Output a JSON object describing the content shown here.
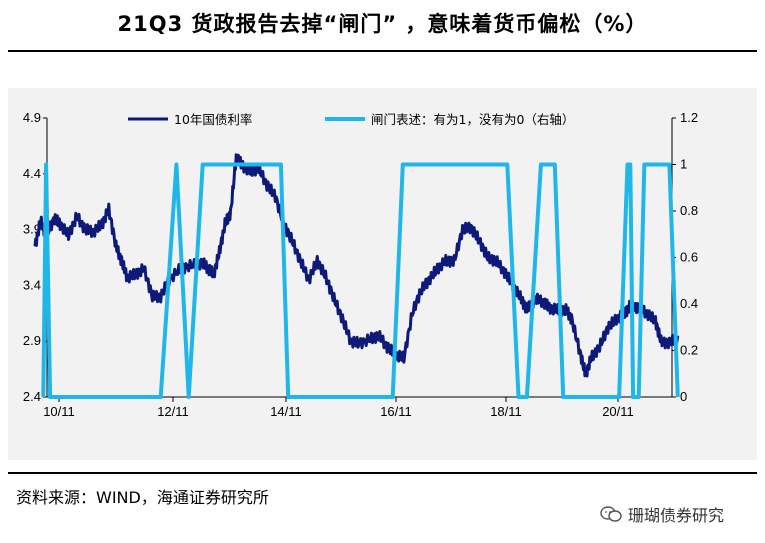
{
  "title": "21Q3 货政报告去掉“闸门” ，意味着货币偏松（%）",
  "source": "资料来源：WIND，海通证券研究所",
  "watermark": "珊瑚债券研究",
  "colors": {
    "yield_line": "#0d1a7a",
    "gate_line": "#1fb6ea",
    "background": "#f2f2f2"
  },
  "chart_data": {
    "type": "line",
    "x_ticks": [
      "10/11",
      "12/11",
      "14/11",
      "16/11",
      "18/11",
      "20/11"
    ],
    "x_range": [
      2010.4,
      2021.95
    ],
    "y_left": {
      "min": 2.4,
      "max": 4.9,
      "ticks": [
        "2.4",
        "2.9",
        "3.4",
        "3.9",
        "4.4",
        "4.9"
      ]
    },
    "y_right": {
      "min": 0,
      "max": 1.2,
      "ticks": [
        "0",
        "0.2",
        "0.4",
        "0.6",
        "0.8",
        "1",
        "1.2"
      ]
    },
    "legend_placement": "top",
    "grid": false,
    "series": [
      {
        "name": "10年国债利率",
        "axis": "left",
        "points": [
          [
            2010.4,
            3.75
          ],
          [
            2010.5,
            3.98
          ],
          [
            2010.6,
            3.85
          ],
          [
            2010.75,
            4.0
          ],
          [
            2010.85,
            3.95
          ],
          [
            2011.0,
            3.85
          ],
          [
            2011.15,
            4.02
          ],
          [
            2011.3,
            3.9
          ],
          [
            2011.45,
            3.88
          ],
          [
            2011.6,
            3.95
          ],
          [
            2011.72,
            4.08
          ],
          [
            2011.85,
            3.75
          ],
          [
            2011.95,
            3.62
          ],
          [
            2012.05,
            3.47
          ],
          [
            2012.2,
            3.5
          ],
          [
            2012.35,
            3.55
          ],
          [
            2012.5,
            3.3
          ],
          [
            2012.65,
            3.3
          ],
          [
            2012.8,
            3.45
          ],
          [
            2013.0,
            3.55
          ],
          [
            2013.2,
            3.58
          ],
          [
            2013.4,
            3.6
          ],
          [
            2013.5,
            3.55
          ],
          [
            2013.6,
            3.5
          ],
          [
            2013.7,
            3.7
          ],
          [
            2013.8,
            3.95
          ],
          [
            2013.9,
            4.05
          ],
          [
            2014.0,
            4.55
          ],
          [
            2014.1,
            4.48
          ],
          [
            2014.25,
            4.42
          ],
          [
            2014.4,
            4.45
          ],
          [
            2014.55,
            4.3
          ],
          [
            2014.7,
            4.2
          ],
          [
            2014.85,
            3.95
          ],
          [
            2015.0,
            3.8
          ],
          [
            2015.15,
            3.62
          ],
          [
            2015.3,
            3.45
          ],
          [
            2015.45,
            3.62
          ],
          [
            2015.6,
            3.48
          ],
          [
            2015.75,
            3.28
          ],
          [
            2015.9,
            3.1
          ],
          [
            2016.05,
            2.9
          ],
          [
            2016.2,
            2.88
          ],
          [
            2016.4,
            2.92
          ],
          [
            2016.55,
            2.95
          ],
          [
            2016.7,
            2.85
          ],
          [
            2016.85,
            2.78
          ],
          [
            2017.0,
            2.75
          ],
          [
            2017.15,
            3.15
          ],
          [
            2017.3,
            3.35
          ],
          [
            2017.45,
            3.45
          ],
          [
            2017.6,
            3.55
          ],
          [
            2017.75,
            3.62
          ],
          [
            2017.9,
            3.62
          ],
          [
            2018.05,
            3.9
          ],
          [
            2018.2,
            3.92
          ],
          [
            2018.35,
            3.8
          ],
          [
            2018.5,
            3.65
          ],
          [
            2018.65,
            3.62
          ],
          [
            2018.8,
            3.52
          ],
          [
            2018.95,
            3.4
          ],
          [
            2019.1,
            3.28
          ],
          [
            2019.2,
            3.18
          ],
          [
            2019.35,
            3.28
          ],
          [
            2019.5,
            3.25
          ],
          [
            2019.6,
            3.2
          ],
          [
            2019.75,
            3.18
          ],
          [
            2019.9,
            3.18
          ],
          [
            2020.0,
            3.1
          ],
          [
            2020.15,
            2.8
          ],
          [
            2020.25,
            2.6
          ],
          [
            2020.35,
            2.75
          ],
          [
            2020.5,
            2.85
          ],
          [
            2020.65,
            3.02
          ],
          [
            2020.8,
            3.1
          ],
          [
            2020.95,
            3.15
          ],
          [
            2021.05,
            3.22
          ],
          [
            2021.2,
            3.2
          ],
          [
            2021.35,
            3.15
          ],
          [
            2021.5,
            3.08
          ],
          [
            2021.6,
            2.9
          ],
          [
            2021.75,
            2.88
          ],
          [
            2021.9,
            2.95
          ]
        ]
      },
      {
        "name": "闸门表述：有为1，没有为0（右轴）",
        "axis": "right",
        "points": [
          [
            2010.55,
            0
          ],
          [
            2010.6,
            1
          ],
          [
            2010.67,
            0
          ],
          [
            2012.65,
            0
          ],
          [
            2012.93,
            1
          ],
          [
            2013.15,
            0
          ],
          [
            2013.4,
            1
          ],
          [
            2014.8,
            1
          ],
          [
            2014.93,
            0
          ],
          [
            2016.8,
            0
          ],
          [
            2016.98,
            1
          ],
          [
            2018.85,
            1
          ],
          [
            2019.05,
            0
          ],
          [
            2019.2,
            0
          ],
          [
            2019.45,
            1
          ],
          [
            2019.7,
            1
          ],
          [
            2019.85,
            0
          ],
          [
            2020.85,
            0
          ],
          [
            2021.0,
            1
          ],
          [
            2021.05,
            1
          ],
          [
            2021.1,
            0
          ],
          [
            2021.2,
            0
          ],
          [
            2021.3,
            1
          ],
          [
            2021.75,
            1
          ],
          [
            2021.9,
            0
          ]
        ]
      }
    ]
  }
}
